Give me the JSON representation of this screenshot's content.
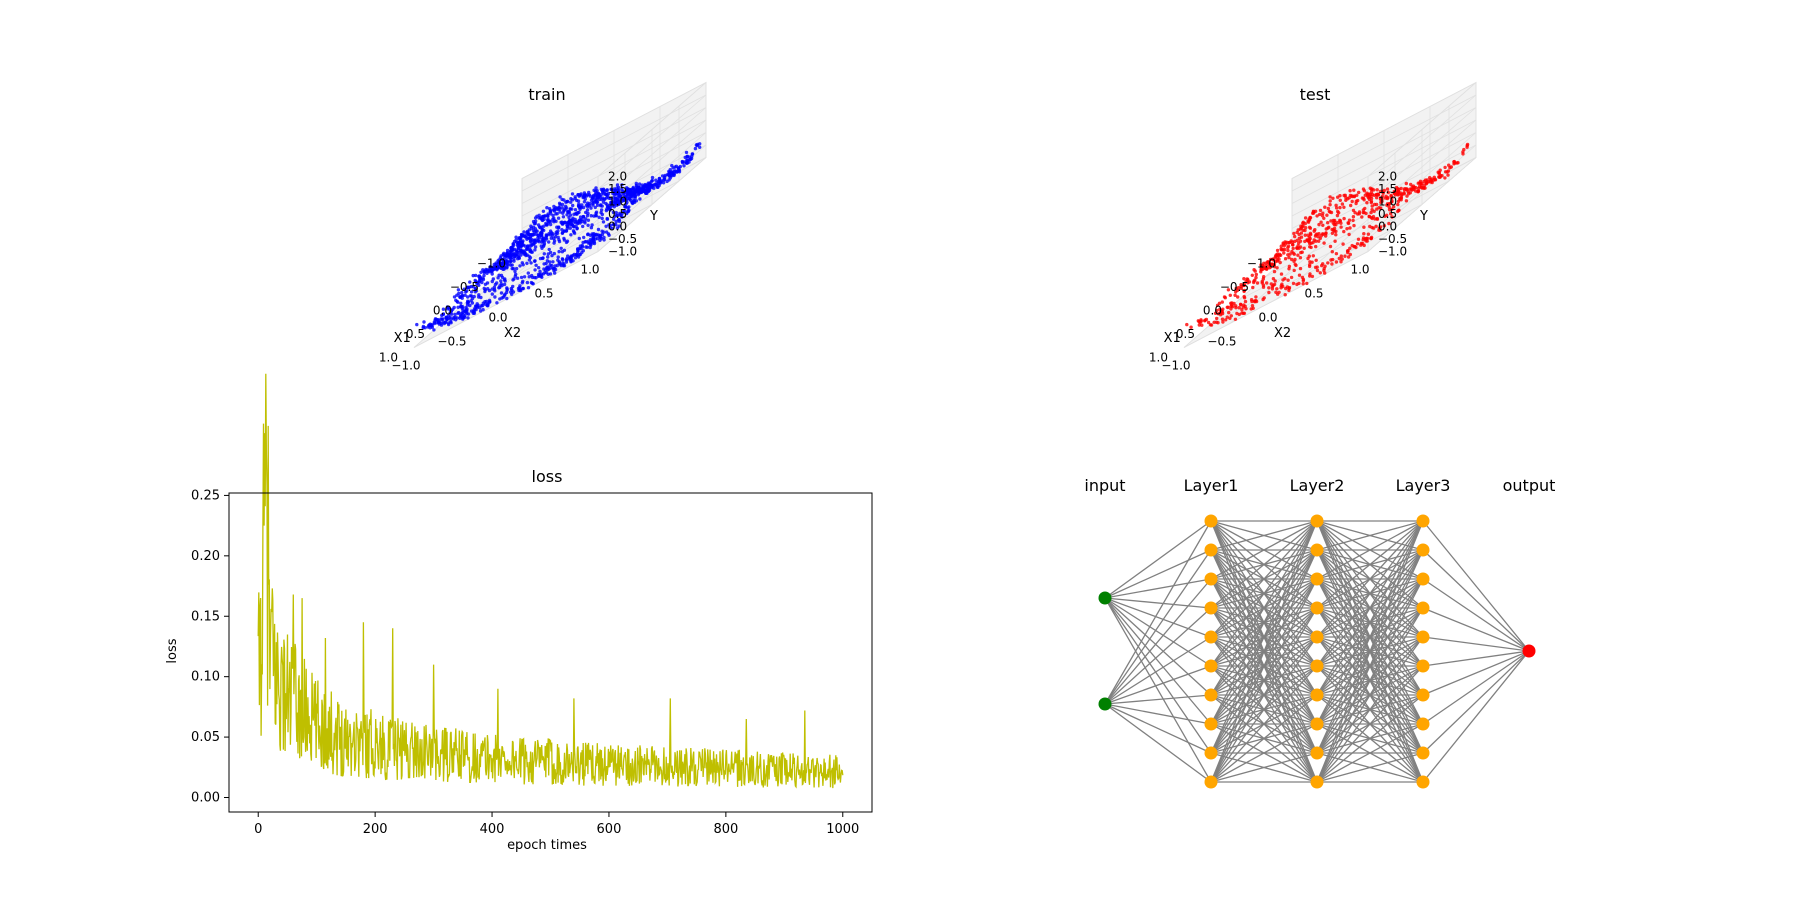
{
  "chart_data": [
    {
      "type": "scatter3d",
      "title": "train",
      "xlabel": "X1",
      "ylabel": "X2",
      "zlabel": "Y",
      "xlim": [
        -1.0,
        1.0
      ],
      "ylim": [
        -1.0,
        1.0
      ],
      "zlim": [
        -1.0,
        2.0
      ],
      "xticks": [
        "−1.0",
        "−0.5",
        "0.0",
        "0.5",
        "1.0"
      ],
      "yticks": [
        "−1.0",
        "−0.5",
        "0.0",
        "0.5",
        "1.0"
      ],
      "zticks": [
        "−1.0",
        "−0.5",
        "0.0",
        "0.5",
        "1.0",
        "1.5",
        "2.0"
      ],
      "color": "#0000ff",
      "n_points": 1400
    },
    {
      "type": "scatter3d",
      "title": "test",
      "xlabel": "X1",
      "ylabel": "X2",
      "zlabel": "Y",
      "xlim": [
        -1.0,
        1.0
      ],
      "ylim": [
        -1.0,
        1.0
      ],
      "zlim": [
        -1.0,
        2.0
      ],
      "xticks": [
        "−1.0",
        "−0.5",
        "0.0",
        "0.5",
        "1.0"
      ],
      "yticks": [
        "−1.0",
        "−0.5",
        "0.0",
        "0.5",
        "1.0"
      ],
      "zticks": [
        "−1.0",
        "−0.5",
        "0.0",
        "0.5",
        "1.0",
        "1.5",
        "2.0"
      ],
      "color": "#ff0000",
      "n_points": 700
    },
    {
      "type": "line",
      "title": "loss",
      "xlabel": "epoch times",
      "ylabel": "loss",
      "xlim": [
        -50,
        1050
      ],
      "ylim": [
        -0.012,
        0.252
      ],
      "xticks": [
        0,
        200,
        400,
        600,
        800,
        1000
      ],
      "yticks": [
        "0.00",
        "0.05",
        "0.10",
        "0.15",
        "0.20",
        "0.25"
      ],
      "ytick_values": [
        0,
        0.05,
        0.1,
        0.15,
        0.2,
        0.25
      ],
      "color": "#bfbf00",
      "x": [
        0,
        5,
        10,
        15,
        20,
        30,
        40,
        50,
        60,
        70,
        80,
        90,
        100,
        120,
        140,
        160,
        180,
        200,
        220,
        240,
        260,
        280,
        300,
        340,
        380,
        420,
        460,
        500,
        540,
        580,
        620,
        660,
        700,
        740,
        780,
        820,
        860,
        900,
        940,
        980,
        1000
      ],
      "y": [
        0.095,
        0.14,
        0.2,
        0.24,
        0.12,
        0.1,
        0.09,
        0.085,
        0.08,
        0.075,
        0.07,
        0.065,
        0.06,
        0.055,
        0.05,
        0.05,
        0.045,
        0.045,
        0.04,
        0.04,
        0.04,
        0.038,
        0.035,
        0.035,
        0.033,
        0.032,
        0.03,
        0.03,
        0.028,
        0.028,
        0.027,
        0.026,
        0.026,
        0.025,
        0.025,
        0.024,
        0.023,
        0.023,
        0.022,
        0.022,
        0.02
      ],
      "spikes": [
        [
          12,
          0.241
        ],
        [
          25,
          0.163
        ],
        [
          60,
          0.168
        ],
        [
          75,
          0.165
        ],
        [
          115,
          0.132
        ],
        [
          180,
          0.145
        ],
        [
          230,
          0.14
        ],
        [
          300,
          0.11
        ],
        [
          410,
          0.09
        ],
        [
          540,
          0.082
        ],
        [
          705,
          0.082
        ],
        [
          835,
          0.065
        ],
        [
          935,
          0.072
        ]
      ]
    },
    {
      "type": "diagram",
      "title": "",
      "layers": [
        {
          "label": "input",
          "nodes": 2,
          "color": "#008000"
        },
        {
          "label": "Layer1",
          "nodes": 10,
          "color": "#ffa500"
        },
        {
          "label": "Layer2",
          "nodes": 10,
          "color": "#ffa500"
        },
        {
          "label": "Layer3",
          "nodes": 10,
          "color": "#ffa500"
        },
        {
          "label": "output",
          "nodes": 1,
          "color": "#ff0000"
        }
      ],
      "edge_color": "#808080"
    }
  ]
}
